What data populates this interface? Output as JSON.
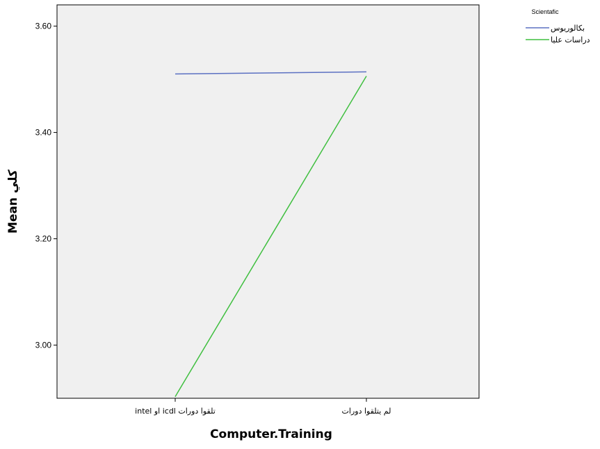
{
  "chart_data": {
    "type": "line",
    "xlabel": "Computer.Training",
    "ylabel": "Mean كلي",
    "categories": [
      "تلقوا دورات icdl او intel",
      "لم يتلقوا دورات"
    ],
    "ylim": [
      2.9,
      3.64
    ],
    "yticks": [
      "3.00",
      "3.20",
      "3.40",
      "3.60"
    ],
    "grid": false,
    "legend": {
      "title": "Scientafic",
      "placement": "top-right-outside"
    },
    "series": [
      {
        "name": "بكالوريوس",
        "color": "#5b70c2",
        "values": [
          3.51,
          3.514
        ]
      },
      {
        "name": "دراسات عليا",
        "color": "#3fbf3f",
        "values": [
          2.903,
          3.506
        ]
      }
    ]
  }
}
